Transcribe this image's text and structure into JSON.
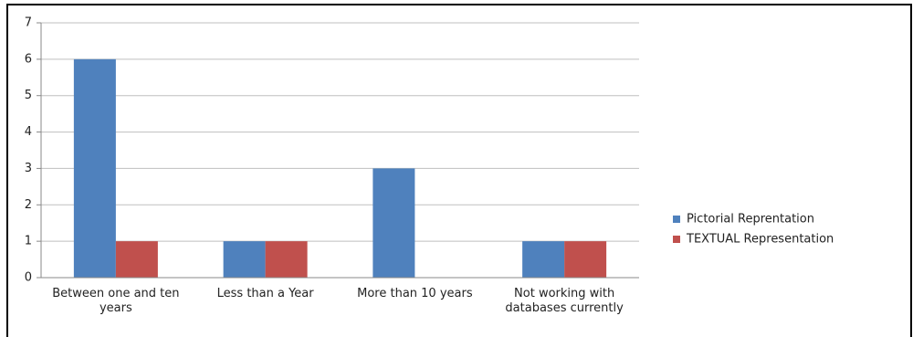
{
  "chart_data": {
    "type": "bar",
    "categories": [
      "Between one and ten years",
      "Less than a Year",
      "More than 10 years",
      "Not working with databases currently"
    ],
    "series": [
      {
        "name": "Pictorial Reprentation",
        "color": "#4f81bd",
        "values": [
          6,
          1,
          3,
          1
        ]
      },
      {
        "name": "TEXTUAL Representation",
        "color": "#c0504d",
        "values": [
          1,
          1,
          0,
          1
        ]
      }
    ],
    "ylim": [
      0,
      7
    ],
    "yticks": [
      0,
      1,
      2,
      3,
      4,
      5,
      6,
      7
    ],
    "grid": true,
    "legend": "right"
  }
}
